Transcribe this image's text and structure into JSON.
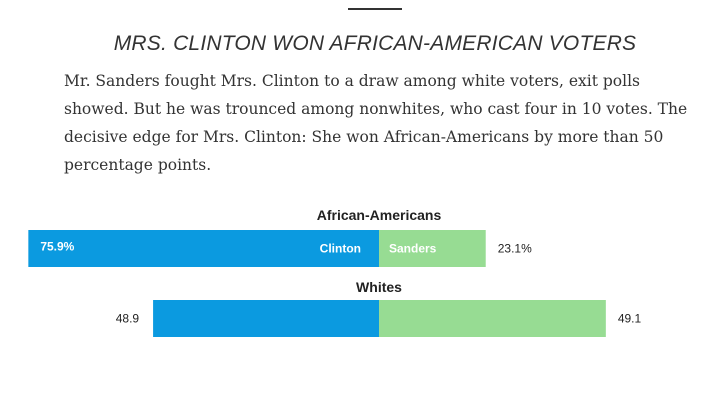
{
  "headline": "MRS. CLINTON WON AFRICAN-AMERICAN VOTERS",
  "description": "Mr. Sanders fought Mrs. Clinton to a draw among white voters, exit polls showed. But he was trounced among nonwhites, who cast four in 10 votes. The decisive edge for Mrs. Clinton: She won African-Americans by more than 50 percentage points.",
  "colors": {
    "clinton": "#0b9ae0",
    "sanders": "#97dc93"
  },
  "chart_data": {
    "type": "bar",
    "orientation": "horizontal-diverging",
    "series_names": [
      "Clinton",
      "Sanders"
    ],
    "groups": [
      {
        "name": "African-Americans",
        "clinton": 75.9,
        "sanders": 23.1,
        "clinton_label": "75.9%",
        "sanders_label": "23.1%",
        "show_series_names": true
      },
      {
        "name": "Whites",
        "clinton": 48.9,
        "sanders": 49.1,
        "clinton_label": "48.9",
        "sanders_label": "49.1",
        "show_series_names": false
      }
    ]
  }
}
